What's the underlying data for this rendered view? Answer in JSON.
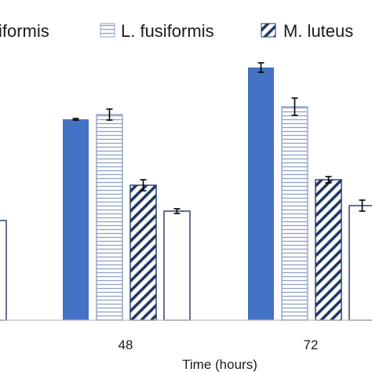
{
  "chart_data": {
    "type": "bar",
    "categories": [
      "48",
      "72"
    ],
    "xlabel": "Time (hours)",
    "legend_position": "top",
    "series": [
      {
        "name": "L. fusiformis",
        "legend_text": "iformis",
        "style": "solid",
        "values": [
          256,
          322
        ],
        "errors": [
          1,
          6
        ]
      },
      {
        "name": "L. fusiformis",
        "style": "horizontal-lines",
        "values": [
          262,
          272
        ],
        "errors": [
          7,
          11
        ]
      },
      {
        "name": "M. luteus",
        "style": "diagonal-hatch",
        "values": [
          172,
          179
        ],
        "errors": [
          7,
          4
        ]
      },
      {
        "name": "",
        "style": "empty",
        "values": [
          139,
          146
        ],
        "errors": [
          3,
          7
        ]
      }
    ],
    "partial_bar_left": {
      "value": 127
    },
    "colors": {
      "solid": "#4472c4",
      "hatch": "#1f3864",
      "lines": "#8ea2c6",
      "axis": "#bfbfbf",
      "text": "#1a1a1a"
    }
  }
}
